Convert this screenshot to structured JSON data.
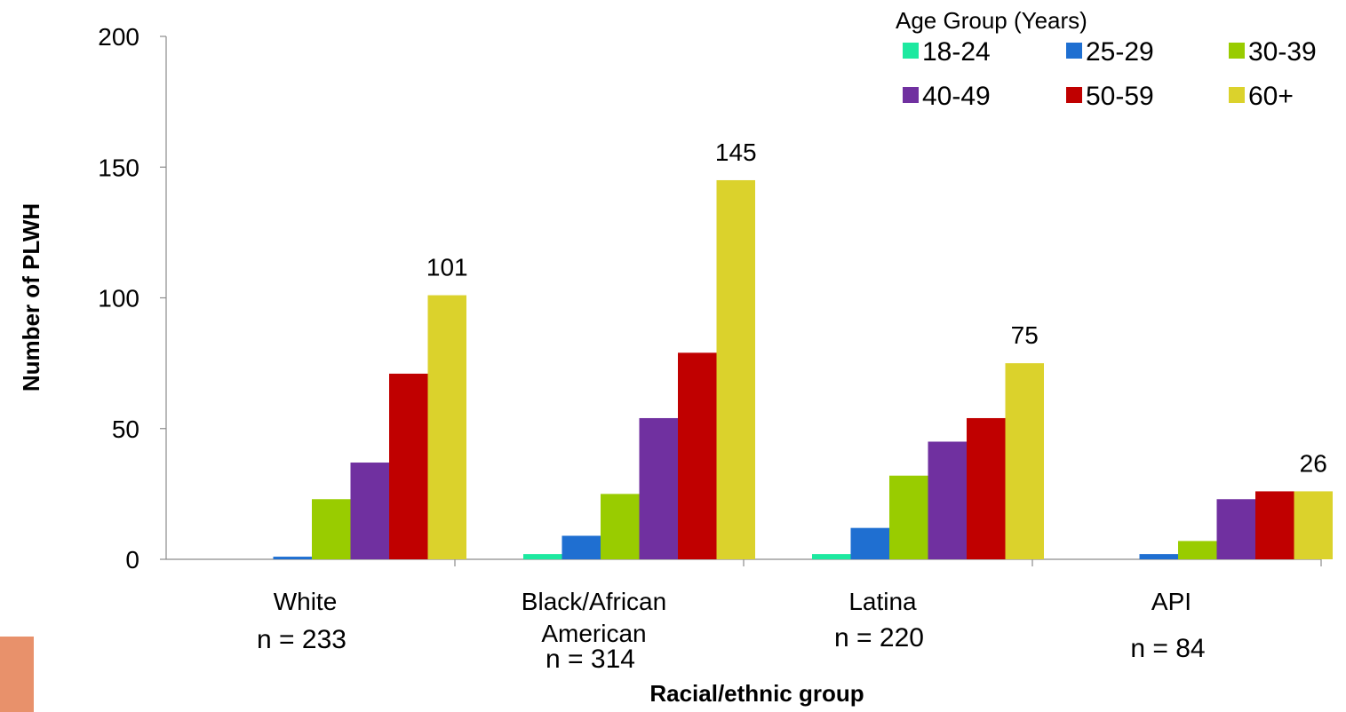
{
  "chart_data": {
    "type": "bar",
    "ylabel": "Number of PLWH",
    "xlabel": "Racial/ethnic group",
    "ylim": [
      0,
      200
    ],
    "yticks": [
      0,
      50,
      100,
      150,
      200
    ],
    "grid": false,
    "legend_position": "top-right",
    "legend_title": "Age Group (Years)",
    "categories": [
      "White",
      "Black/African American",
      "Latina",
      "API"
    ],
    "category_counts": [
      "n = 233",
      "n = 314",
      "n = 220",
      "n = 84"
    ],
    "series": [
      {
        "name": "18-24",
        "color": "#1de9a0",
        "values": [
          0,
          2,
          2,
          0
        ]
      },
      {
        "name": "25-29",
        "color": "#1f6fd1",
        "values": [
          1,
          9,
          12,
          2
        ]
      },
      {
        "name": "30-39",
        "color": "#99cc00",
        "values": [
          23,
          25,
          32,
          7
        ]
      },
      {
        "name": "40-49",
        "color": "#7030a0",
        "values": [
          37,
          54,
          45,
          23
        ]
      },
      {
        "name": "50-59",
        "color": "#c00000",
        "values": [
          71,
          79,
          54,
          26
        ]
      },
      {
        "name": "60+",
        "color": "#dbd22c",
        "values": [
          101,
          145,
          75,
          26
        ]
      }
    ],
    "data_labels": {
      "series": "60+",
      "values": [
        "101",
        "145",
        "75",
        "26"
      ]
    }
  }
}
